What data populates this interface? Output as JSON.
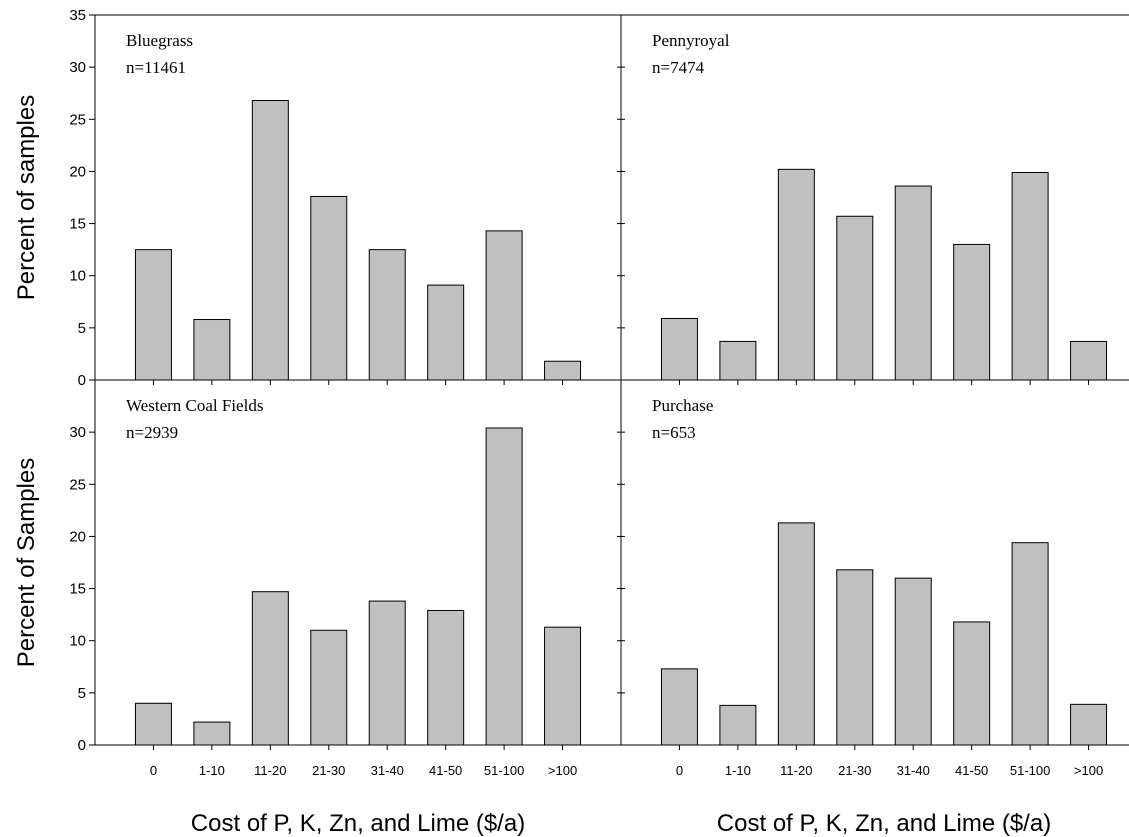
{
  "colors": {
    "bar_fill": "#c0c0c0",
    "stroke": "#000000",
    "background": "#ffffff"
  },
  "chart_data": [
    {
      "type": "bar",
      "panel": "top-left",
      "title": "Bluegrass",
      "subtitle": "n=11461",
      "categories": [
        "0",
        "1-10",
        "11-20",
        "21-30",
        "31-40",
        "41-50",
        "51-100",
        ">100"
      ],
      "values": [
        12.5,
        5.8,
        26.8,
        17.6,
        12.5,
        9.1,
        14.3,
        1.8
      ],
      "ylabel": "Percent of samples",
      "xlabel": "",
      "ylim": [
        0,
        35
      ],
      "yticks": [
        "0",
        "5",
        "10",
        "15",
        "20",
        "25",
        "30",
        "35"
      ]
    },
    {
      "type": "bar",
      "panel": "top-right",
      "title": "Pennyroyal",
      "subtitle": "n=7474",
      "categories": [
        "0",
        "1-10",
        "11-20",
        "21-30",
        "31-40",
        "41-50",
        "51-100",
        ">100"
      ],
      "values": [
        5.9,
        3.7,
        20.2,
        15.7,
        18.6,
        13.0,
        19.9,
        3.7
      ],
      "ylabel": "",
      "xlabel": "",
      "ylim": [
        0,
        35
      ],
      "yticks": []
    },
    {
      "type": "bar",
      "panel": "bottom-left",
      "title": "Western Coal Fields",
      "subtitle": "n=2939",
      "categories": [
        "0",
        "1-10",
        "11-20",
        "21-30",
        "31-40",
        "41-50",
        "51-100",
        ">100"
      ],
      "values": [
        4.0,
        2.2,
        14.7,
        11.0,
        13.8,
        12.9,
        30.4,
        11.3
      ],
      "ylabel": "Percent of Samples",
      "xlabel": "Cost of P, K, Zn, and Lime ($/a)",
      "ylim": [
        0,
        35
      ],
      "yticks": [
        "0",
        "5",
        "10",
        "15",
        "20",
        "25",
        "30"
      ]
    },
    {
      "type": "bar",
      "panel": "bottom-right",
      "title": "Purchase",
      "subtitle": "n=653",
      "categories": [
        "0",
        "1-10",
        "11-20",
        "21-30",
        "31-40",
        "41-50",
        "51-100",
        ">100"
      ],
      "values": [
        7.3,
        3.8,
        21.3,
        16.8,
        16.0,
        11.8,
        19.4,
        3.9
      ],
      "ylabel": "",
      "xlabel": "Cost of P, K, Zn, and Lime ($/a)",
      "ylim": [
        0,
        35
      ],
      "yticks": []
    }
  ]
}
